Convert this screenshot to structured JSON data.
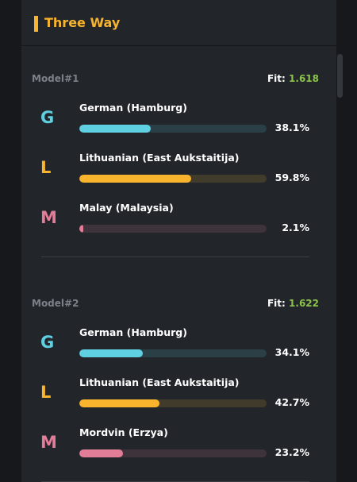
{
  "header": {
    "title": "Three Way"
  },
  "models": [
    {
      "name": "Model#1",
      "fit_label": "Fit:",
      "fit": "1.618",
      "rows": [
        {
          "letter": "G",
          "language": "German (Hamburg)",
          "percent": 38.1,
          "percent_label": "38.1%",
          "color": "#5fd0e2"
        },
        {
          "letter": "L",
          "language": "Lithuanian (East Aukstaitija)",
          "percent": 59.8,
          "percent_label": "59.8%",
          "color": "#f8b42c"
        },
        {
          "letter": "M",
          "language": "Malay (Malaysia)",
          "percent": 2.1,
          "percent_label": "2.1%",
          "color": "#e27d98"
        }
      ]
    },
    {
      "name": "Model#2",
      "fit_label": "Fit:",
      "fit": "1.622",
      "rows": [
        {
          "letter": "G",
          "language": "German (Hamburg)",
          "percent": 34.1,
          "percent_label": "34.1%",
          "color": "#5fd0e2"
        },
        {
          "letter": "L",
          "language": "Lithuanian (East Aukstaitija)",
          "percent": 42.7,
          "percent_label": "42.7%",
          "color": "#f8b42c"
        },
        {
          "letter": "M",
          "language": "Mordvin (Erzya)",
          "percent": 23.2,
          "percent_label": "23.2%",
          "color": "#e27d98"
        }
      ]
    }
  ]
}
